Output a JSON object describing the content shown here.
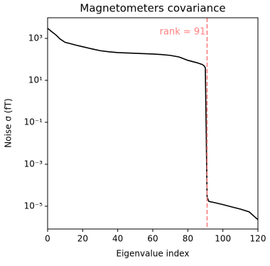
{
  "chart_data": {
    "type": "line",
    "title": "Magnetometers covariance",
    "x_label": "Eigenvalue index",
    "y_label": "Noise σ (fT)",
    "x": [
      0,
      1,
      2,
      3,
      5,
      7,
      10,
      13,
      16,
      20,
      25,
      30,
      35,
      40,
      50,
      60,
      65,
      70,
      75,
      80,
      85,
      88,
      89,
      90,
      91,
      92,
      95,
      100,
      105,
      110,
      115,
      118,
      120
    ],
    "series": [
      {
        "color": "#000000",
        "values": [
          3000,
          2600,
          2200,
          1900,
          1400,
          950,
          650,
          560,
          480,
          400,
          320,
          260,
          230,
          210,
          195,
          180,
          170,
          155,
          130,
          90,
          70,
          58,
          52,
          40,
          2.7e-05,
          1.7e-05,
          1.5e-05,
          1.2e-05,
          9.3e-06,
          7.3e-06,
          5.4e-06,
          3.2e-06,
          2.3e-06
        ]
      }
    ],
    "xlim": [
      0,
      120
    ],
    "xticks": [
      0,
      20,
      40,
      60,
      80,
      100,
      120
    ],
    "ylim": [
      8.2e-07,
      9600
    ],
    "y_log": true,
    "yticks": [
      {
        "value": 1e-05,
        "label": "10⁻⁵"
      },
      {
        "value": 0.001,
        "label": "10⁻³"
      },
      {
        "value": 0.1,
        "label": "10⁻¹"
      },
      {
        "value": 10,
        "label": "10¹"
      },
      {
        "value": 1000,
        "label": "10³"
      }
    ],
    "vline": {
      "x": 91,
      "color": "#ff7f7f",
      "label": "rank ≈ 91"
    }
  }
}
